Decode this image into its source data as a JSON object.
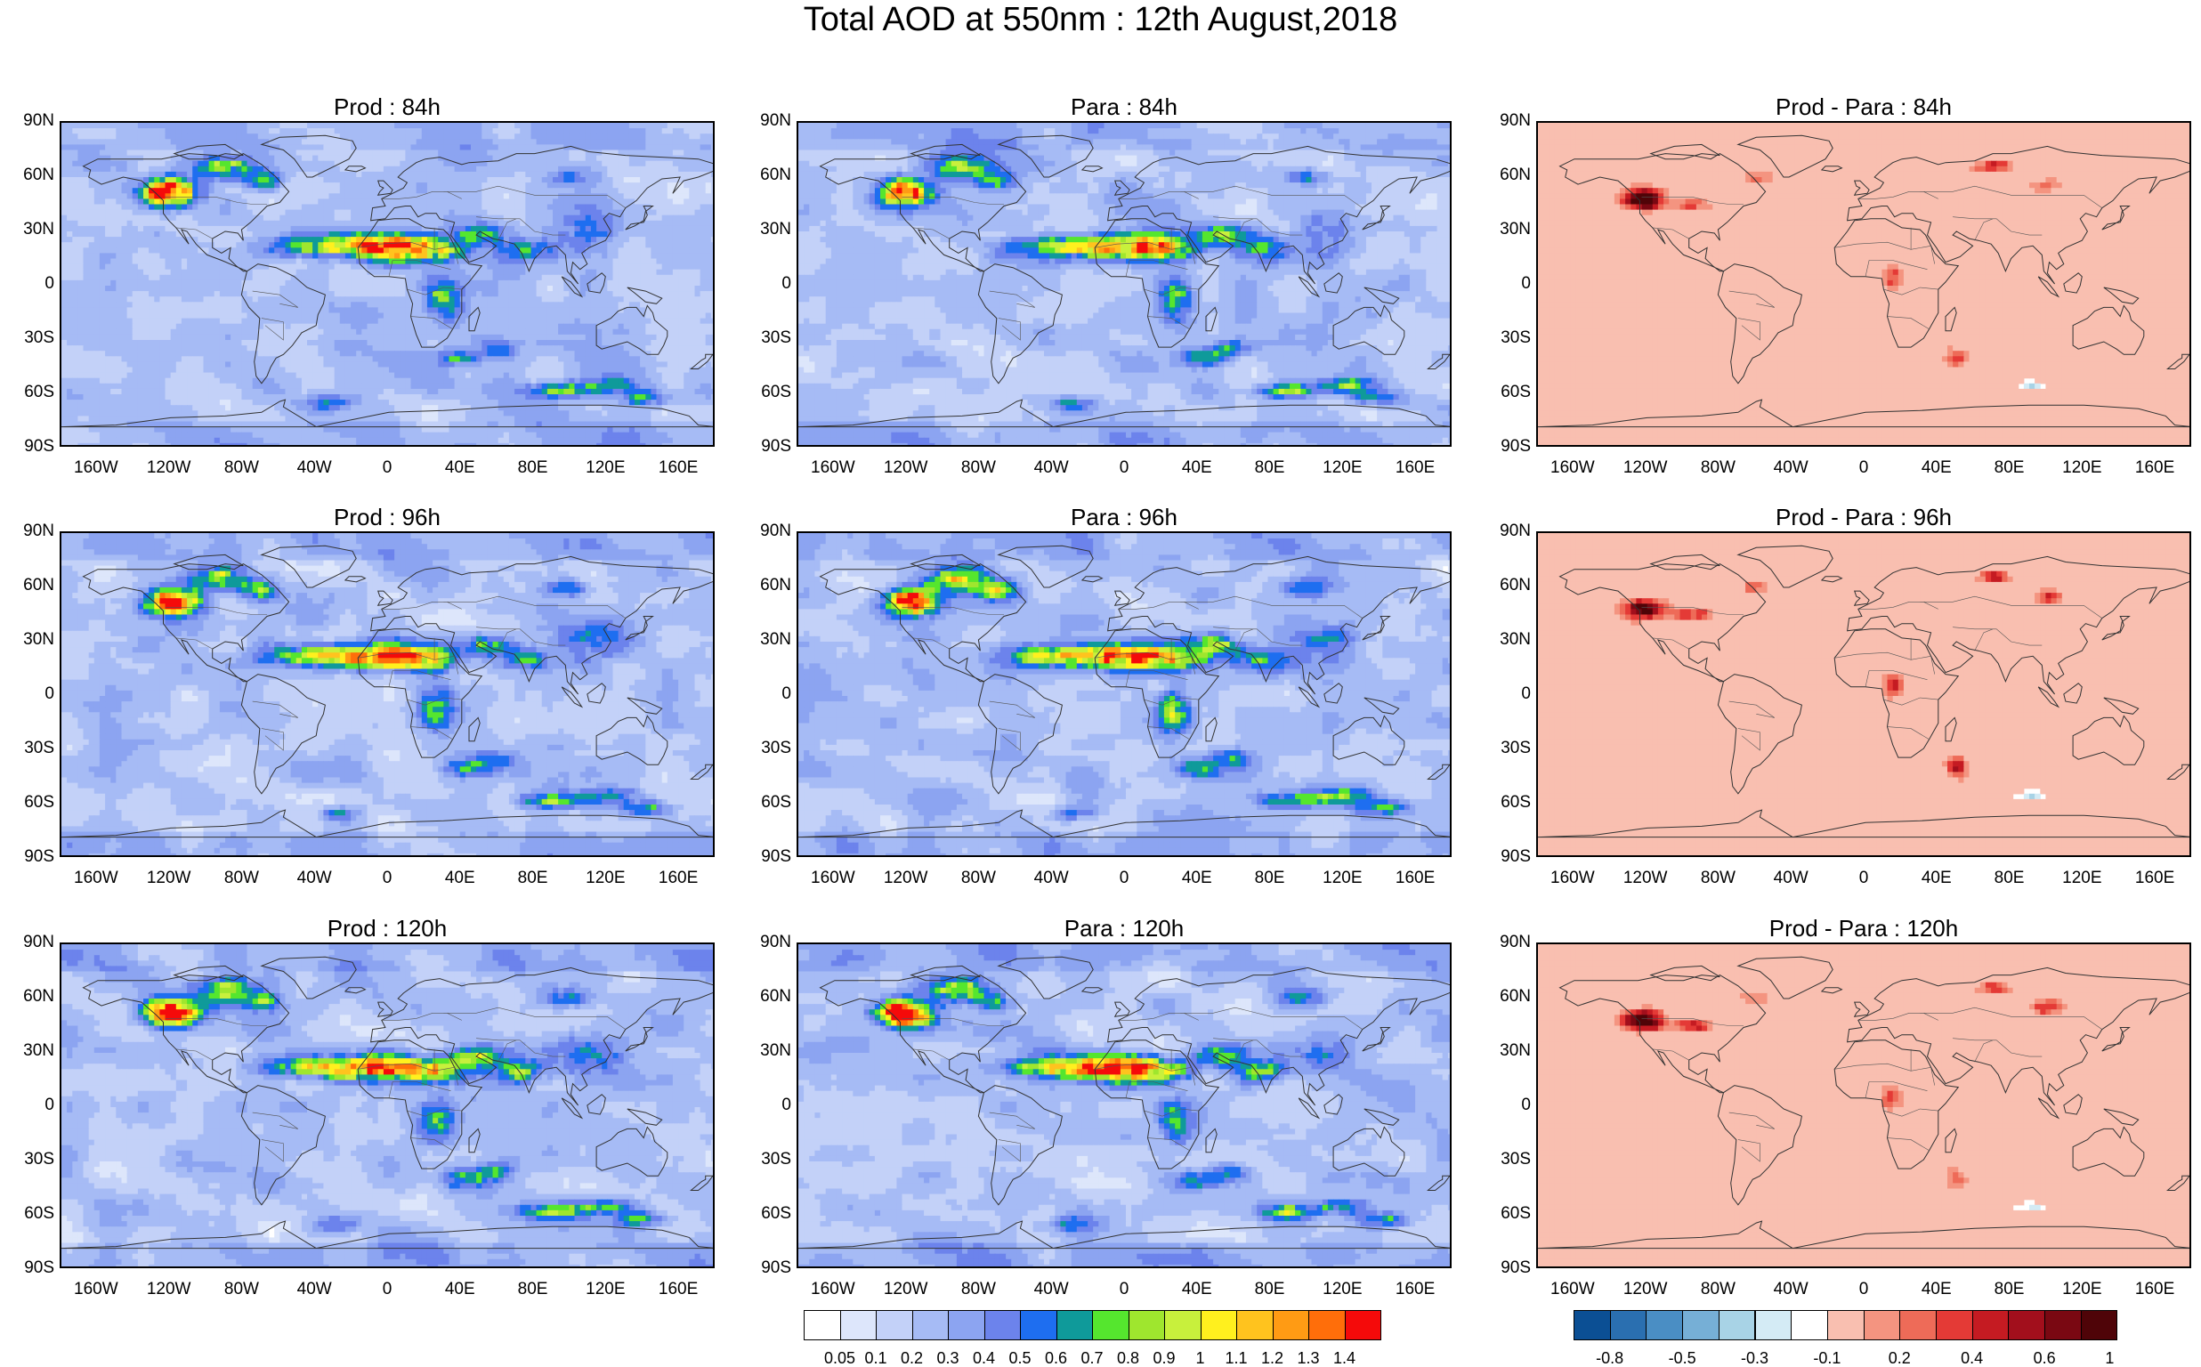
{
  "title": "Total AOD at 550nm : 12th August,2018",
  "lat_labels": [
    "90N",
    "60N",
    "30N",
    "0",
    "30S",
    "60S",
    "90S"
  ],
  "lon_labels": [
    "160W",
    "120W",
    "80W",
    "40W",
    "0",
    "40E",
    "80E",
    "120E",
    "160E"
  ],
  "panels": [
    {
      "title": "Prod : 84h",
      "kind": "aod"
    },
    {
      "title": "Para : 84h",
      "kind": "aod"
    },
    {
      "title": "Prod - Para : 84h",
      "kind": "diff"
    },
    {
      "title": "Prod : 96h",
      "kind": "aod"
    },
    {
      "title": "Para : 96h",
      "kind": "aod"
    },
    {
      "title": "Prod - Para : 96h",
      "kind": "diff"
    },
    {
      "title": "Prod : 120h",
      "kind": "aod"
    },
    {
      "title": "Para : 120h",
      "kind": "aod"
    },
    {
      "title": "Prod - Para : 120h",
      "kind": "diff"
    }
  ],
  "aod_colorbar": {
    "labels": [
      "0.05",
      "0.1",
      "0.2",
      "0.3",
      "0.4",
      "0.5",
      "0.6",
      "0.7",
      "0.8",
      "0.9",
      "1",
      "1.1",
      "1.2",
      "1.3",
      "1.4"
    ],
    "colors": [
      "#ffffff",
      "#dde6fb",
      "#c3d1f8",
      "#a6bbf5",
      "#8ca4f1",
      "#6c83ec",
      "#1e6ef0",
      "#0f9a9a",
      "#55e62e",
      "#9fe62e",
      "#c8f03c",
      "#fff01e",
      "#ffc31e",
      "#ff9b14",
      "#ff6e0a",
      "#f50a0a"
    ]
  },
  "diff_colorbar": {
    "labels": [
      "-0.8",
      "-0.5",
      "-0.3",
      "-0.1",
      "0.2",
      "0.4",
      "0.6",
      "1"
    ],
    "colors": [
      "#0b4f94",
      "#2a6fb0",
      "#4a8ec4",
      "#76afd6",
      "#a8d3e6",
      "#d4ebf5",
      "#ffffff",
      "#f9bfb0",
      "#f49480",
      "#ee6b58",
      "#e43a36",
      "#c51b22",
      "#a20f1c",
      "#7a0812",
      "#4f0408"
    ]
  }
}
